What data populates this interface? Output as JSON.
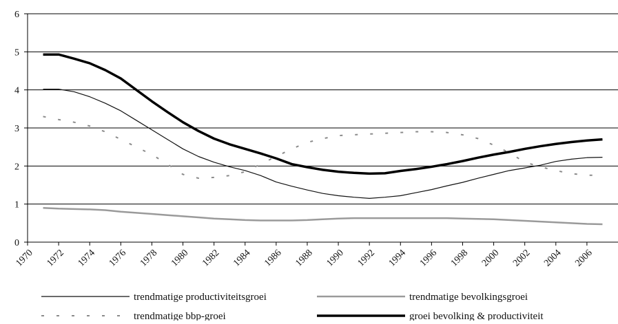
{
  "chart_data": {
    "type": "line",
    "x": [
      1971,
      1972,
      1973,
      1974,
      1975,
      1976,
      1977,
      1978,
      1979,
      1980,
      1981,
      1982,
      1983,
      1984,
      1985,
      1986,
      1987,
      1988,
      1989,
      1990,
      1991,
      1992,
      1993,
      1994,
      1995,
      1996,
      1997,
      1998,
      1999,
      2000,
      2001,
      2002,
      2003,
      2004,
      2005,
      2006,
      2007
    ],
    "xlim": [
      1970,
      2008
    ],
    "xticks": [
      1970,
      1972,
      1974,
      1976,
      1978,
      1980,
      1982,
      1984,
      1986,
      1988,
      1990,
      1992,
      1994,
      1996,
      1998,
      2000,
      2002,
      2004,
      2006
    ],
    "ylim": [
      0,
      6
    ],
    "yticks": [
      0,
      1,
      2,
      3,
      4,
      5,
      6
    ],
    "grid": true,
    "legend": "bottom",
    "series": [
      {
        "name": "trendmatige productiviteitsgroei",
        "color": "#111111",
        "style": "thin",
        "values": [
          4.02,
          4.02,
          3.95,
          3.82,
          3.65,
          3.45,
          3.2,
          2.95,
          2.7,
          2.45,
          2.25,
          2.1,
          1.98,
          1.88,
          1.75,
          1.58,
          1.47,
          1.37,
          1.28,
          1.22,
          1.18,
          1.15,
          1.18,
          1.22,
          1.3,
          1.38,
          1.48,
          1.57,
          1.68,
          1.78,
          1.88,
          1.95,
          2.02,
          2.12,
          2.18,
          2.22,
          2.23
        ]
      },
      {
        "name": "trendmatige bevolkingsgroei",
        "color": "#9a9a9a",
        "style": "gray",
        "values": [
          0.9,
          0.88,
          0.87,
          0.86,
          0.84,
          0.8,
          0.77,
          0.74,
          0.71,
          0.68,
          0.65,
          0.62,
          0.6,
          0.58,
          0.57,
          0.57,
          0.57,
          0.58,
          0.6,
          0.62,
          0.63,
          0.63,
          0.63,
          0.63,
          0.63,
          0.63,
          0.63,
          0.62,
          0.61,
          0.6,
          0.58,
          0.56,
          0.54,
          0.52,
          0.5,
          0.48,
          0.47
        ]
      },
      {
        "name": "trendmatige bbp-groei",
        "color": "#8a8a8a",
        "style": "dotted",
        "values": [
          3.3,
          3.22,
          3.15,
          3.05,
          2.9,
          2.7,
          2.5,
          2.3,
          2.05,
          1.78,
          1.68,
          1.7,
          1.75,
          1.85,
          2.05,
          2.25,
          2.45,
          2.62,
          2.72,
          2.8,
          2.82,
          2.84,
          2.86,
          2.88,
          2.9,
          2.9,
          2.88,
          2.82,
          2.72,
          2.55,
          2.35,
          2.1,
          1.98,
          1.88,
          1.8,
          1.76,
          1.75
        ]
      },
      {
        "name": "groei bevolking & productiviteit",
        "color": "#000000",
        "style": "thick",
        "values": [
          4.93,
          4.93,
          4.82,
          4.7,
          4.52,
          4.3,
          4.0,
          3.7,
          3.42,
          3.15,
          2.92,
          2.72,
          2.57,
          2.45,
          2.33,
          2.2,
          2.05,
          1.97,
          1.9,
          1.85,
          1.82,
          1.8,
          1.81,
          1.87,
          1.92,
          1.98,
          2.05,
          2.13,
          2.22,
          2.3,
          2.37,
          2.45,
          2.52,
          2.58,
          2.63,
          2.67,
          2.7
        ]
      }
    ]
  }
}
